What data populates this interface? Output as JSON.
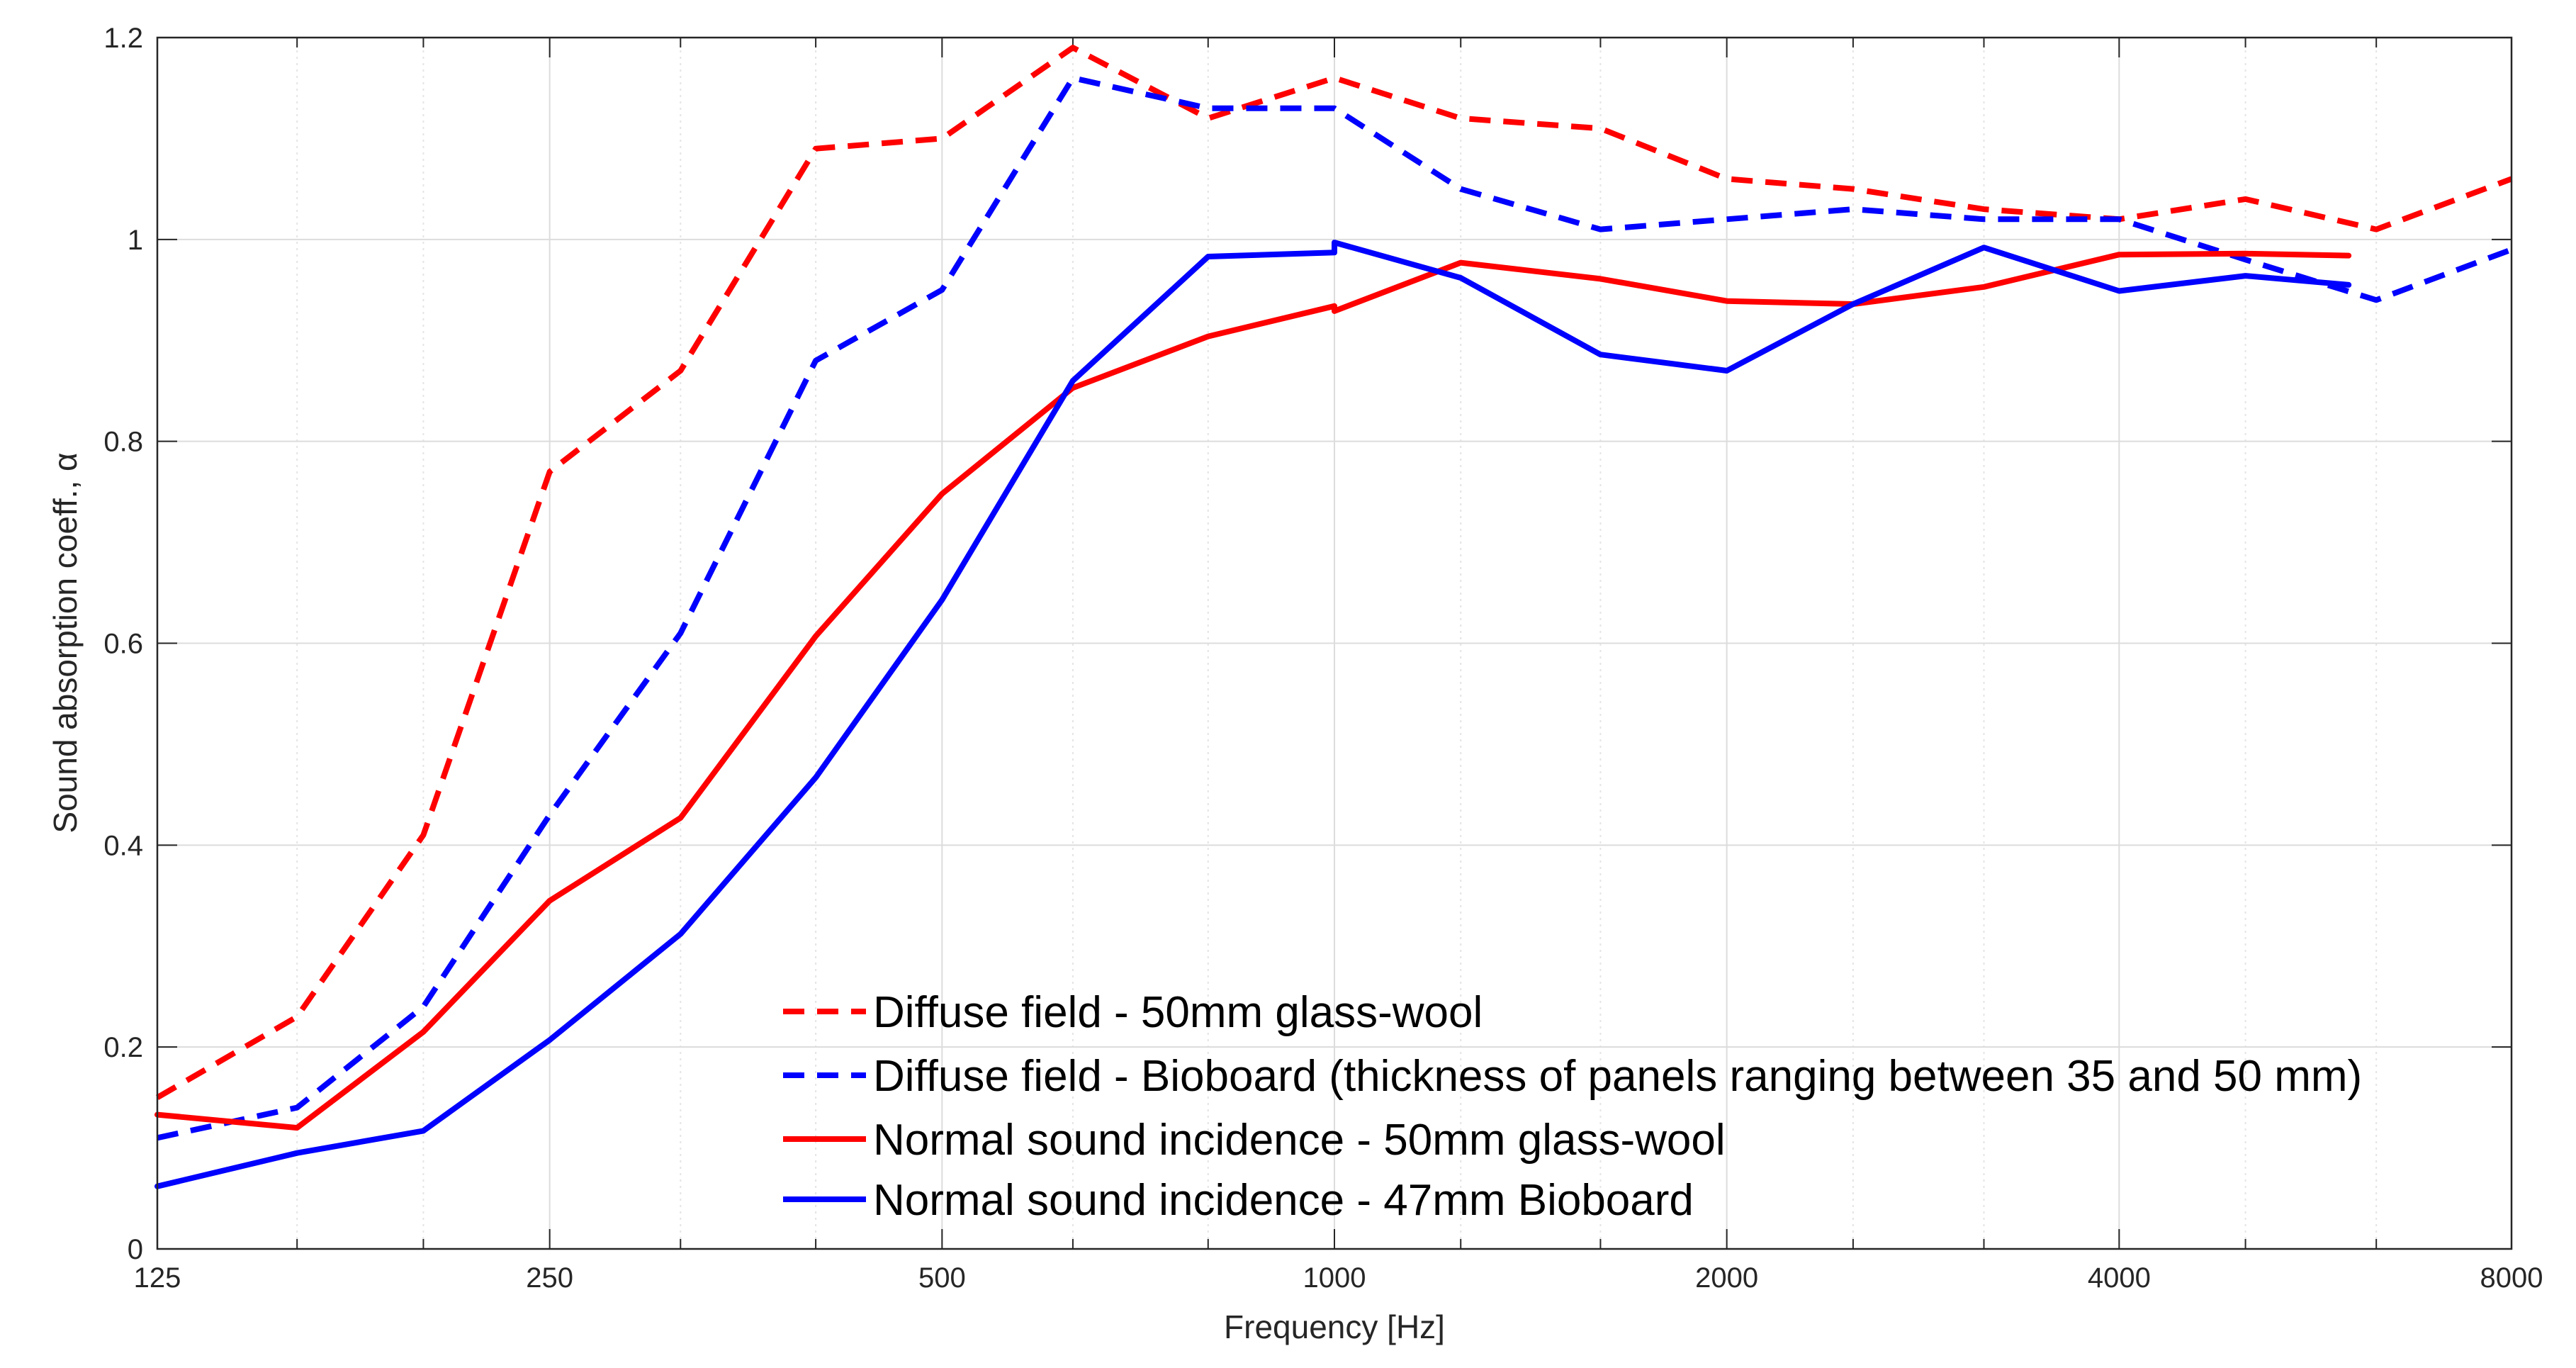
{
  "chart_data": {
    "type": "line",
    "title": "",
    "xlabel": "Frequency [Hz]",
    "ylabel": "Sound absorption coeff., α",
    "xscale": "log2",
    "xlim": [
      125,
      8000
    ],
    "ylim": [
      0,
      1.2
    ],
    "xticks": [
      125,
      250,
      500,
      1000,
      2000,
      4000,
      8000
    ],
    "xtick_labels": [
      "125",
      "250",
      "500",
      "1000",
      "2000",
      "4000",
      "8000"
    ],
    "xminor": [
      160,
      200,
      315,
      400,
      630,
      800,
      1250,
      1600,
      2500,
      3150,
      5000,
      6300
    ],
    "yticks": [
      0,
      0.2,
      0.4,
      0.6,
      0.8,
      1,
      1.2
    ],
    "ytick_labels": [
      "0",
      "0.2",
      "0.4",
      "0.6",
      "0.8",
      "1",
      "1.2"
    ],
    "grid": true,
    "legend_position": "bottom-center",
    "series": [
      {
        "name": "Diffuse field - 50mm glass-wool",
        "color": "#ff0000",
        "style": "dashed",
        "x": [
          125,
          160,
          200,
          250,
          315,
          400,
          500,
          630,
          800,
          1000,
          1250,
          1600,
          2000,
          2500,
          3150,
          4000,
          5000,
          6300,
          8000
        ],
        "y": [
          0.15,
          0.23,
          0.41,
          0.77,
          0.87,
          1.09,
          1.1,
          1.19,
          1.12,
          1.16,
          1.12,
          1.11,
          1.06,
          1.05,
          1.03,
          1.02,
          1.04,
          1.01,
          1.06
        ]
      },
      {
        "name": "Diffuse field - Bioboard (thickness of panels ranging between 35 and 50 mm)",
        "color": "#0000ff",
        "style": "dashed",
        "x": [
          125,
          160,
          200,
          250,
          315,
          400,
          500,
          630,
          800,
          1000,
          1250,
          1600,
          2000,
          2500,
          3150,
          4000,
          5000,
          6300,
          8000
        ],
        "y": [
          0.11,
          0.14,
          0.24,
          0.43,
          0.61,
          0.88,
          0.95,
          1.16,
          1.13,
          1.13,
          1.05,
          1.01,
          1.02,
          1.03,
          1.02,
          1.02,
          0.98,
          0.94,
          0.99
        ]
      },
      {
        "name": "Normal sound incidence - 50mm glass-wool",
        "color": "#ff0000",
        "style": "solid",
        "x": [
          125,
          160,
          200,
          250,
          315,
          400,
          500,
          630,
          800,
          1000,
          1000,
          1250,
          1600,
          2000,
          2500,
          3150,
          4000,
          5000,
          6000
        ],
        "y": [
          0.133,
          0.12,
          0.215,
          0.345,
          0.427,
          0.607,
          0.748,
          0.853,
          0.904,
          0.934,
          0.929,
          0.977,
          0.961,
          0.939,
          0.936,
          0.953,
          0.985,
          0.986,
          0.984
        ]
      },
      {
        "name": "Normal sound incidence - 47mm Bioboard",
        "color": "#0000ff",
        "style": "solid",
        "x": [
          125,
          160,
          200,
          250,
          315,
          400,
          500,
          630,
          800,
          1000,
          1000,
          1250,
          1600,
          2000,
          2500,
          3150,
          4000,
          5000,
          6000
        ],
        "y": [
          0.062,
          0.095,
          0.117,
          0.207,
          0.312,
          0.467,
          0.643,
          0.86,
          0.983,
          0.987,
          0.997,
          0.962,
          0.886,
          0.87,
          0.936,
          0.992,
          0.949,
          0.964,
          0.955
        ]
      }
    ]
  }
}
